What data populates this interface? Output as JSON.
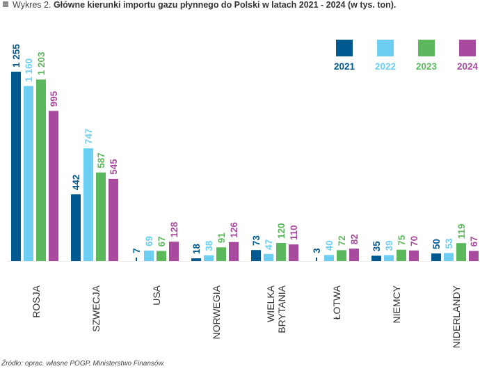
{
  "header": {
    "prefix": "Wykres 2.",
    "title": "Główne kierunki importu gazu płynnego do Polski w latach 2021 - 2024 (w tys. ton)."
  },
  "footer": {
    "source": "Źródło: oprac. własne POGP, Ministerstwo Finansów."
  },
  "colors": {
    "2021": "#005a8f",
    "2022": "#6ccff2",
    "2023": "#5cb85c",
    "2024": "#a84a9e"
  },
  "chart_data": {
    "type": "bar",
    "title": "Główne kierunki importu gazu płynnego do Polski w latach 2021 - 2024 (w tys. ton).",
    "xlabel": "",
    "ylabel": "",
    "ylim": [
      0,
      1255
    ],
    "grid": false,
    "legend_position": "top-right",
    "categories": [
      "ROSJA",
      "SZWECJA",
      "USA",
      "NORWEGIA",
      "WIELKA BRYTANIA",
      "ŁOTWA",
      "NIEMCY",
      "NIDERLANDY"
    ],
    "series": [
      {
        "name": "2021",
        "values": [
          1255,
          442,
          7,
          18,
          73,
          3,
          35,
          50
        ],
        "labels": [
          "1 255",
          "442",
          "7",
          "18",
          "73",
          "3",
          "35",
          "50"
        ]
      },
      {
        "name": "2022",
        "values": [
          1160,
          747,
          69,
          38,
          47,
          40,
          39,
          53
        ],
        "labels": [
          "1 160",
          "747",
          "69",
          "38",
          "47",
          "40",
          "39",
          "53"
        ]
      },
      {
        "name": "2023",
        "values": [
          1203,
          587,
          67,
          91,
          120,
          72,
          75,
          119
        ],
        "labels": [
          "1 203",
          "587",
          "67",
          "91",
          "120",
          "72",
          "75",
          "119"
        ]
      },
      {
        "name": "2024",
        "values": [
          995,
          545,
          128,
          126,
          110,
          82,
          70,
          67
        ],
        "labels": [
          "995",
          "545",
          "128",
          "126",
          "110",
          "82",
          "70",
          "67"
        ]
      }
    ]
  }
}
